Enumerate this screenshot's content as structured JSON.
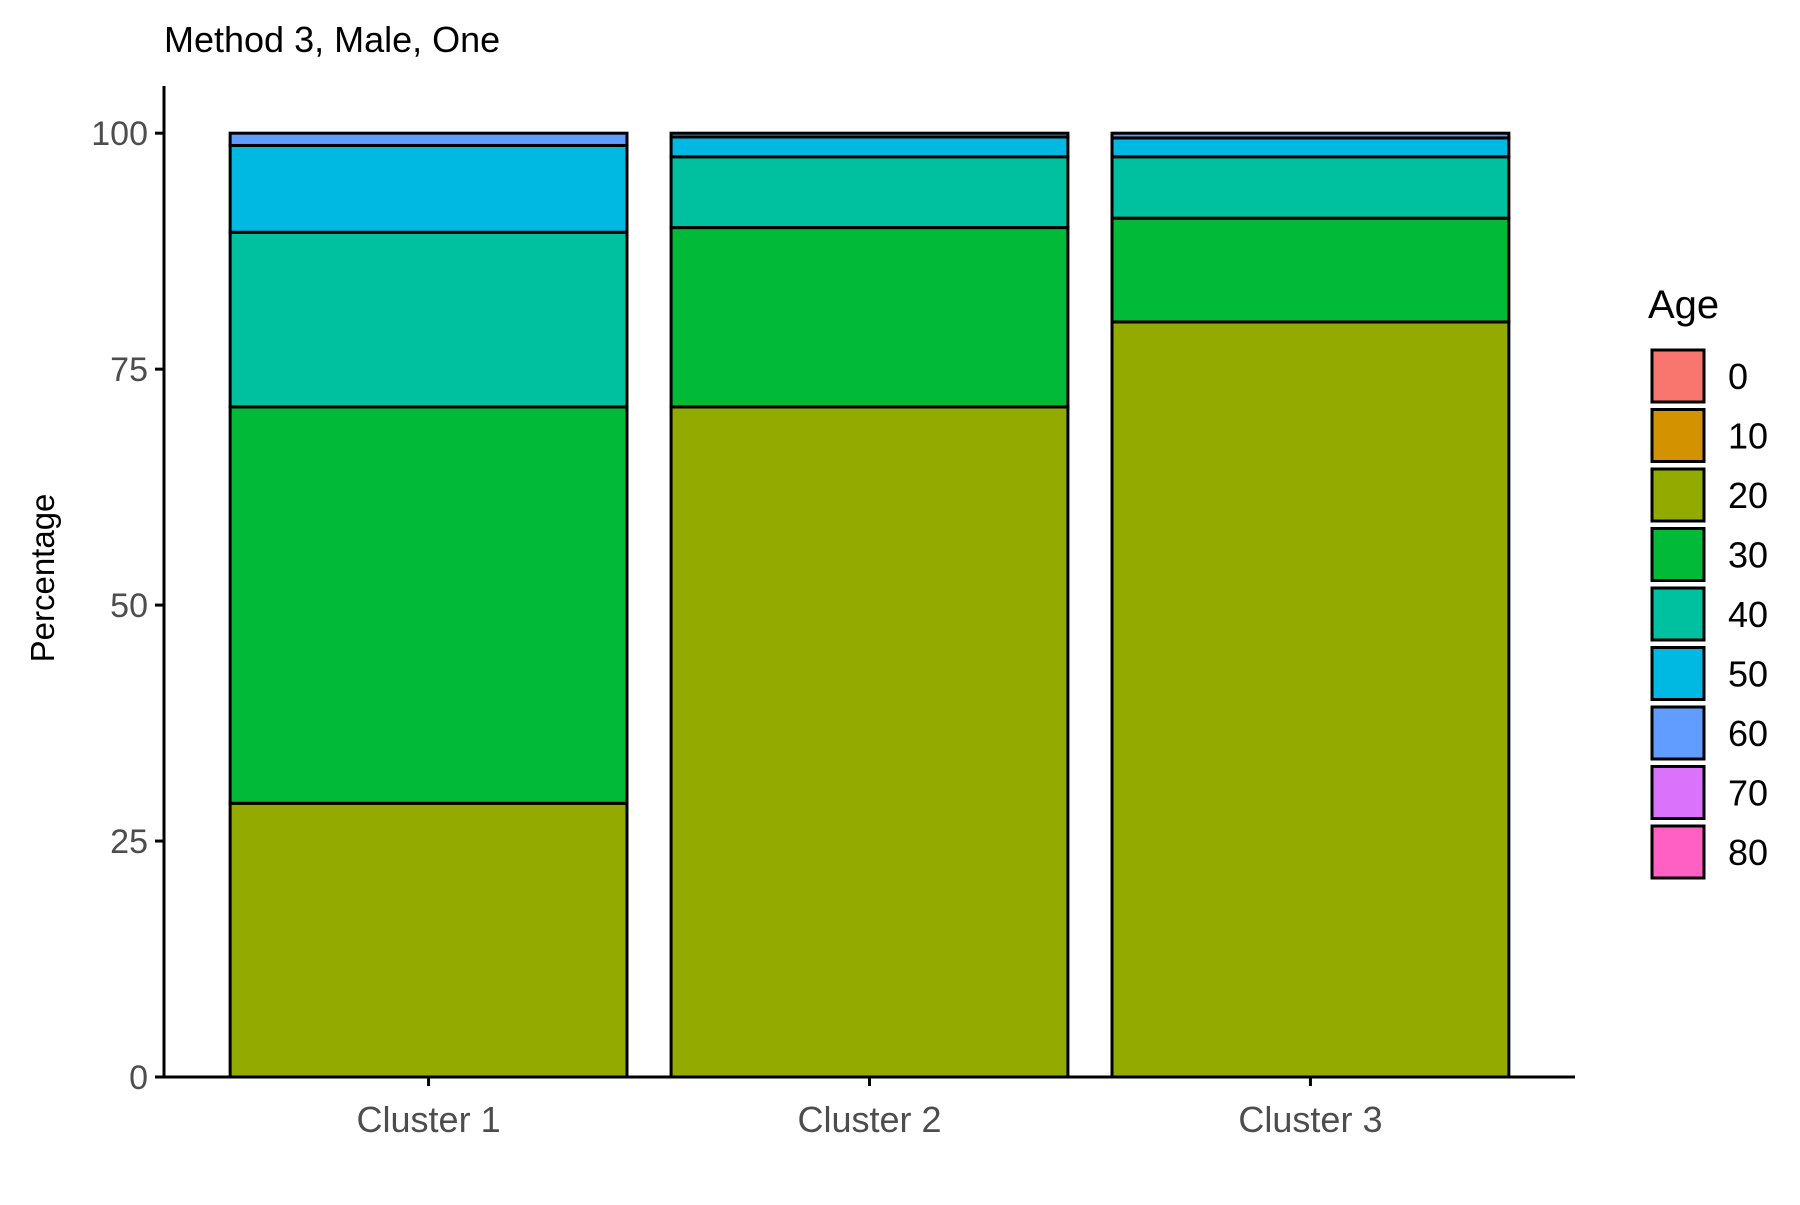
{
  "chart_data": {
    "type": "bar",
    "stacked": true,
    "title": "Method 3, Male, One",
    "xlabel": "",
    "ylabel": "Percentage",
    "ylim": [
      0,
      105
    ],
    "yticks": [
      0,
      25,
      50,
      75,
      100
    ],
    "grid": false,
    "legend_position": "right",
    "legend_title": "Age",
    "categories": [
      "Cluster 1",
      "Cluster 2",
      "Cluster 3"
    ],
    "series": [
      {
        "name": "0",
        "color": "#F8766D",
        "values": [
          0,
          0,
          0
        ]
      },
      {
        "name": "10",
        "color": "#D39200",
        "values": [
          0,
          0,
          0
        ]
      },
      {
        "name": "20",
        "color": "#93AA00",
        "values": [
          29,
          71,
          80
        ]
      },
      {
        "name": "30",
        "color": "#00BA38",
        "values": [
          42,
          19,
          11
        ]
      },
      {
        "name": "40",
        "color": "#00C19F",
        "values": [
          18.5,
          7.5,
          6.5
        ]
      },
      {
        "name": "50",
        "color": "#00B9E3",
        "values": [
          9.2,
          2.1,
          2
        ]
      },
      {
        "name": "60",
        "color": "#619CFF",
        "values": [
          1.3,
          0.4,
          0.5
        ]
      },
      {
        "name": "70",
        "color": "#DB72FB",
        "values": [
          0,
          0,
          0
        ]
      },
      {
        "name": "80",
        "color": "#FF61C3",
        "values": [
          0,
          0,
          0
        ]
      }
    ]
  }
}
